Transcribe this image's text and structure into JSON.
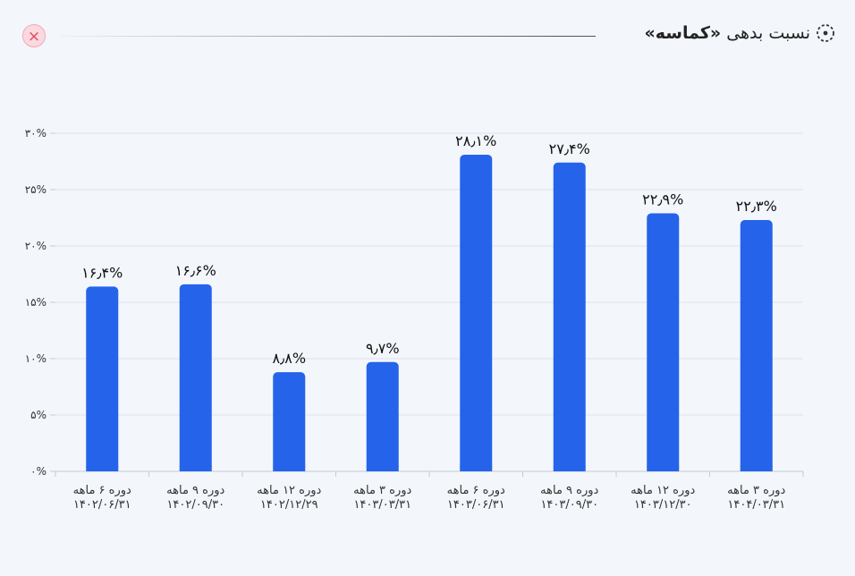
{
  "header": {
    "title_prefix": "نسبت بدهی",
    "title_brand": "«کماسه»",
    "close_symbol": "×",
    "title_icon": "dashed-circle-dot-icon",
    "close_icon": "close-icon"
  },
  "colors": {
    "bar": "#2563eb",
    "grid": "#dde3ec",
    "axis": "#c5cbd6",
    "text": "#333333",
    "close_bg": "#fbd9de",
    "close_fg": "#e0475f"
  },
  "chart_data": {
    "type": "bar",
    "categories": [
      [
        "دوره ۶ ماهه",
        "۱۴۰۲/۰۶/۳۱"
      ],
      [
        "دوره ۹ ماهه",
        "۱۴۰۲/۰۹/۳۰"
      ],
      [
        "دوره ۱۲ ماهه",
        "۱۴۰۲/۱۲/۲۹"
      ],
      [
        "دوره ۳ ماهه",
        "۱۴۰۳/۰۳/۳۱"
      ],
      [
        "دوره ۶ ماهه",
        "۱۴۰۳/۰۶/۳۱"
      ],
      [
        "دوره ۹ ماهه",
        "۱۴۰۳/۰۹/۳۰"
      ],
      [
        "دوره ۱۲ ماهه",
        "۱۴۰۳/۱۲/۳۰"
      ],
      [
        "دوره ۳ ماهه",
        "۱۴۰۴/۰۳/۳۱"
      ]
    ],
    "values": [
      16.4,
      16.6,
      8.8,
      9.7,
      28.1,
      27.4,
      22.9,
      22.3
    ],
    "value_labels": [
      "۱۶٫۴%",
      "۱۶٫۶%",
      "۸٫۸%",
      "۹٫۷%",
      "۲۸٫۱%",
      "۲۷٫۴%",
      "۲۲٫۹%",
      "۲۲٫۳%"
    ],
    "yticks": [
      0,
      5,
      10,
      15,
      20,
      25,
      30
    ],
    "ytick_labels": [
      "۰%",
      "۵%",
      "۱۰%",
      "۱۵%",
      "۲۰%",
      "۲۵%",
      "۳۰%"
    ],
    "ylim": [
      0,
      30
    ],
    "grid": true
  }
}
